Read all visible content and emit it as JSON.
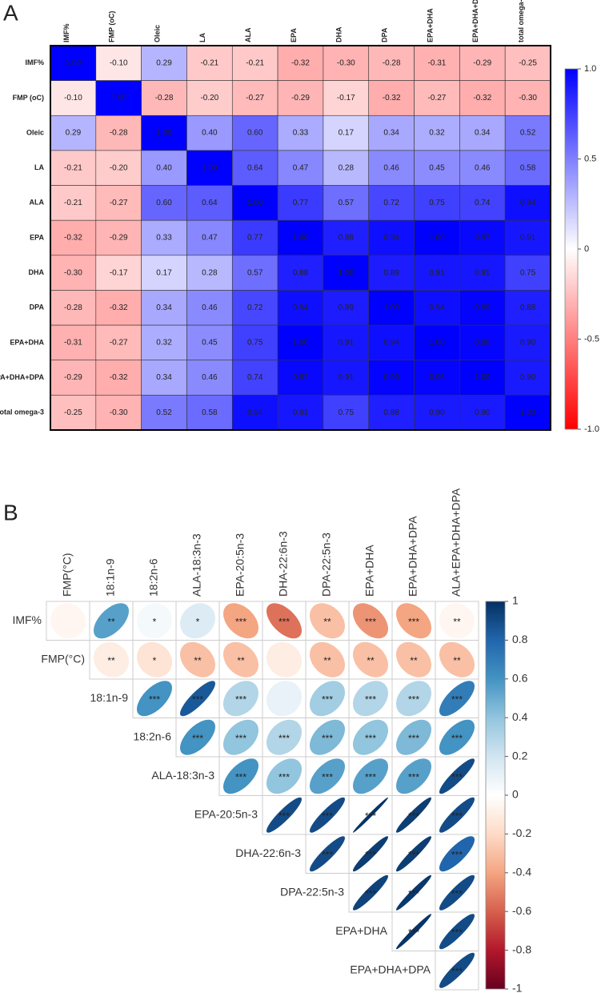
{
  "chart_data": [
    {
      "type": "heatmap",
      "label": "A",
      "categories": [
        "IMF%",
        "FMP (oC)",
        "Oleic",
        "LA",
        "ALA",
        "EPA",
        "DHA",
        "DPA",
        "EPA+DHA",
        "EPA+DHA+DPA",
        "total omega-3"
      ],
      "values": [
        [
          1,
          -0.1,
          0.29,
          -0.21,
          -0.21,
          -0.32,
          -0.3,
          -0.28,
          -0.31,
          -0.29,
          -0.25
        ],
        [
          -0.1,
          1,
          -0.28,
          -0.2,
          -0.27,
          -0.29,
          -0.17,
          -0.32,
          -0.27,
          -0.32,
          -0.3
        ],
        [
          0.29,
          -0.28,
          1,
          0.4,
          0.6,
          0.33,
          0.17,
          0.34,
          0.32,
          0.34,
          0.52
        ],
        [
          -0.21,
          -0.2,
          0.4,
          1,
          0.64,
          0.47,
          0.28,
          0.46,
          0.45,
          0.46,
          0.58
        ],
        [
          -0.21,
          -0.27,
          0.6,
          0.64,
          1,
          0.77,
          0.57,
          0.72,
          0.75,
          0.74,
          0.94
        ],
        [
          -0.32,
          -0.29,
          0.33,
          0.47,
          0.77,
          1,
          0.88,
          0.94,
          1,
          0.97,
          0.91
        ],
        [
          -0.3,
          -0.17,
          0.17,
          0.28,
          0.57,
          0.88,
          1,
          0.89,
          0.91,
          0.91,
          0.75
        ],
        [
          -0.28,
          -0.32,
          0.34,
          0.46,
          0.72,
          0.94,
          0.89,
          1,
          0.94,
          0.99,
          0.88
        ],
        [
          -0.31,
          -0.27,
          0.32,
          0.45,
          0.75,
          1,
          0.91,
          0.94,
          1,
          0.98,
          0.9
        ],
        [
          -0.29,
          -0.32,
          0.34,
          0.46,
          0.74,
          0.97,
          0.91,
          0.99,
          0.98,
          1,
          0.9
        ],
        [
          -0.25,
          -0.3,
          0.52,
          0.58,
          0.94,
          0.91,
          0.75,
          0.88,
          0.9,
          0.9,
          1
        ]
      ],
      "value_labels": [
        [
          "1.00",
          "-0.10",
          "0.29",
          "-0.21",
          "-0.21",
          "-0.32",
          "-0.30",
          "-0.28",
          "-0.31",
          "-0.29",
          "-0.25"
        ],
        [
          "-0.10",
          "1.00",
          "-0.28",
          "-0.20",
          "-0.27",
          "-0.29",
          "-0.17",
          "-0.32",
          "-0.27",
          "-0.32",
          "-0.30"
        ],
        [
          "0.29",
          "-0.28",
          "1.00",
          "0.40",
          "0.60",
          "0.33",
          "0.17",
          "0.34",
          "0.32",
          "0.34",
          "0.52"
        ],
        [
          "-0.21",
          "-0.20",
          "0.40",
          "1.00",
          "0.64",
          "0.47",
          "0.28",
          "0.46",
          "0.45",
          "0.46",
          "0.58"
        ],
        [
          "-0.21",
          "-0.27",
          "0.60",
          "0.64",
          "1.00",
          "0.77",
          "0.57",
          "0.72",
          "0.75",
          "0.74",
          "0.94"
        ],
        [
          "-0.32",
          "-0.29",
          "0.33",
          "0.47",
          "0.77",
          "1.00",
          "0.88",
          "0.94",
          "1.00",
          "0.97",
          "0.91"
        ],
        [
          "-0.30",
          "-0.17",
          "0.17",
          "0.28",
          "0.57",
          "0.88",
          "1.00",
          "0.89",
          "0.91",
          "0.91",
          "0.75"
        ],
        [
          "-0.28",
          "-0.32",
          "0.34",
          "0.46",
          "0.72",
          "0.94",
          "0.89",
          "1.00",
          "0.94",
          "0.99",
          "0.88"
        ],
        [
          "-0.31",
          "-0.27",
          "0.32",
          "0.45",
          "0.75",
          "1.00",
          "0.91",
          "0.94",
          "1.00",
          "0.98",
          "0.90"
        ],
        [
          "-0.29",
          "-0.32",
          "0.34",
          "0.46",
          "0.74",
          "0.97",
          "0.91",
          "0.99",
          "0.98",
          "1.00",
          "0.90"
        ],
        [
          "-0.25",
          "-0.30",
          "0.52",
          "0.58",
          "0.94",
          "0.91",
          "0.75",
          "0.88",
          "0.90",
          "0.90",
          "1.00"
        ]
      ],
      "clim": [
        -1,
        1
      ],
      "colorscale": [
        "#ff0000",
        "#ffffff",
        "#0000ff"
      ],
      "cticks": [
        {
          "value": 1,
          "label": "1.0"
        },
        0.5,
        0,
        -0.5,
        {
          "value": -1,
          "label": "-1.0"
        }
      ]
    },
    {
      "type": "correlogram",
      "label": "B",
      "x_categories": [
        "FMP(°C)",
        "18:1n-9",
        "18:2n-6",
        "ALA-18:3n-3",
        "EPA-20:5n-3",
        "DHA-22:6n-3",
        "DPA-22:5n-3",
        "EPA+DHA",
        "EPA+DHA+DPA",
        "ALA+EPA+DHA+DPA"
      ],
      "y_categories": [
        "IMF%",
        "FMP(°C)",
        "18:1n-9",
        "18:2n-6",
        "ALA-18:3n-3",
        "EPA-20:5n-3",
        "DHA-22:6n-3",
        "DPA-22:5n-3",
        "EPA+DHA",
        "EPA+DHA+DPA"
      ],
      "values": [
        [
          -0.05,
          0.55,
          0.05,
          0.15,
          -0.4,
          -0.55,
          -0.3,
          -0.45,
          -0.4,
          -0.05
        ],
        [
          -0.1,
          -0.15,
          -0.3,
          -0.3,
          -0.1,
          -0.3,
          -0.3,
          -0.3,
          -0.3
        ],
        [
          0.6,
          0.85,
          0.3,
          0.1,
          0.35,
          0.3,
          0.3,
          0.7
        ],
        [
          0.6,
          0.4,
          0.3,
          0.45,
          0.4,
          0.45,
          0.6
        ],
        [
          0.6,
          0.4,
          0.55,
          0.55,
          0.55,
          0.9
        ],
        [
          0.9,
          0.9,
          0.99,
          0.95,
          0.9
        ],
        [
          0.9,
          0.95,
          0.95,
          0.8
        ],
        [
          0.93,
          0.97,
          0.9
        ],
        [
          0.98,
          0.9
        ],
        [
          0.9
        ]
      ],
      "stars": [
        [
          null,
          "**",
          "*",
          "*",
          "***",
          "***",
          "**",
          "***",
          "***",
          "**"
        ],
        [
          "**",
          "*",
          "**",
          "**",
          null,
          "**",
          "**",
          "**",
          "**"
        ],
        [
          "***",
          "***",
          "***",
          null,
          "***",
          "***",
          "***",
          "***"
        ],
        [
          "***",
          "***",
          "***",
          "***",
          "***",
          "***",
          "***"
        ],
        [
          "***",
          "***",
          "***",
          "***",
          "***",
          "***"
        ],
        [
          "***",
          "***",
          "***",
          "***",
          "***"
        ],
        [
          "***",
          "***",
          "***",
          "***"
        ],
        [
          "***",
          "***",
          "***"
        ],
        [
          "***",
          "***"
        ],
        [
          "***"
        ]
      ],
      "clim": [
        -1,
        1
      ],
      "colorscale": [
        "#67001f",
        "#b2182b",
        "#d6604d",
        "#f4a582",
        "#fddbc7",
        "#ffffff",
        "#d1e5f0",
        "#92c5de",
        "#4393c3",
        "#2166ac",
        "#053061"
      ],
      "cticks": [
        1,
        0.8,
        0.6,
        0.4,
        0.2,
        0,
        -0.2,
        -0.4,
        -0.6,
        -0.8,
        -1
      ]
    }
  ]
}
